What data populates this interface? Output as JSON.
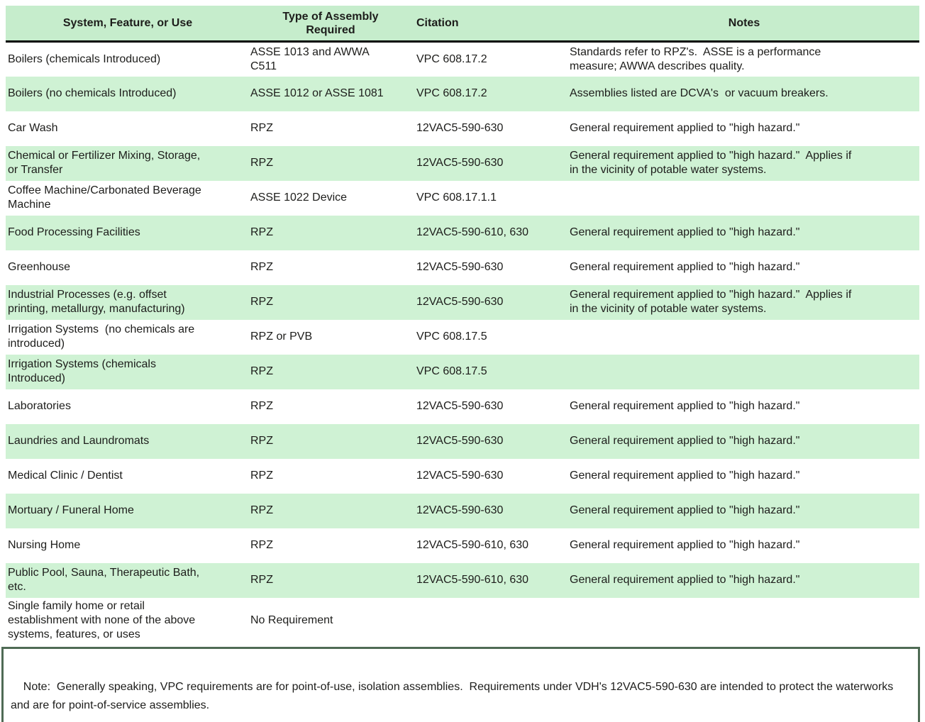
{
  "table": {
    "headers": [
      "System, Feature, or Use",
      "Type of Assembly\nRequired",
      "Citation",
      "Notes"
    ],
    "rows": [
      {
        "shaded": false,
        "system": "Boilers (chemicals Introduced)",
        "assembly": "ASSE 1013 and AWWA\nC511",
        "citation": "VPC 608.17.2",
        "notes": "Standards refer to RPZ's.  ASSE is a performance\nmeasure; AWWA describes quality."
      },
      {
        "shaded": true,
        "system": "Boilers (no chemicals Introduced)",
        "assembly": "ASSE 1012 or ASSE 1081",
        "citation": "VPC 608.17.2",
        "notes": "Assemblies listed are DCVA's  or vacuum breakers."
      },
      {
        "shaded": false,
        "system": "Car Wash",
        "assembly": "RPZ",
        "citation": "12VAC5-590-630",
        "notes": "General requirement applied to \"high hazard.\""
      },
      {
        "shaded": true,
        "system": "Chemical or Fertilizer Mixing, Storage,\nor Transfer",
        "assembly": "RPZ",
        "citation": "12VAC5-590-630",
        "notes": "General requirement applied to \"high hazard.\"  Applies if\nin the vicinity of potable water systems."
      },
      {
        "shaded": false,
        "system": "Coffee Machine/Carbonated Beverage\nMachine",
        "assembly": "ASSE 1022 Device",
        "citation": "VPC 608.17.1.1",
        "notes": ""
      },
      {
        "shaded": true,
        "system": "Food Processing Facilities",
        "assembly": "RPZ",
        "citation": "12VAC5-590-610, 630",
        "notes": "General requirement applied to \"high hazard.\""
      },
      {
        "shaded": false,
        "system": "Greenhouse",
        "assembly": "RPZ",
        "citation": "12VAC5-590-630",
        "notes": "General requirement applied to \"high hazard.\""
      },
      {
        "shaded": true,
        "system": "Industrial Processes (e.g. offset\nprinting, metallurgy, manufacturing)",
        "assembly": "RPZ",
        "citation": "12VAC5-590-630",
        "notes": "General requirement applied to \"high hazard.\"  Applies if\nin the vicinity of potable water systems."
      },
      {
        "shaded": false,
        "system": "Irrigation Systems  (no chemicals are\nintroduced)",
        "assembly": "RPZ or PVB",
        "citation": "VPC 608.17.5",
        "notes": ""
      },
      {
        "shaded": true,
        "system": "Irrigation Systems (chemicals\nIntroduced)",
        "assembly": "RPZ",
        "citation": "VPC 608.17.5",
        "notes": ""
      },
      {
        "shaded": false,
        "system": "Laboratories",
        "assembly": "RPZ",
        "citation": "12VAC5-590-630",
        "notes": "General requirement applied to \"high hazard.\""
      },
      {
        "shaded": true,
        "system": "Laundries and Laundromats",
        "assembly": "RPZ",
        "citation": "12VAC5-590-630",
        "notes": "General requirement applied to \"high hazard.\""
      },
      {
        "shaded": false,
        "system": "Medical Clinic / Dentist",
        "assembly": "RPZ",
        "citation": "12VAC5-590-630",
        "notes": "General requirement applied to \"high hazard.\""
      },
      {
        "shaded": true,
        "system": "Mortuary / Funeral Home",
        "assembly": "RPZ",
        "citation": "12VAC5-590-630",
        "notes": "General requirement applied to \"high hazard.\""
      },
      {
        "shaded": false,
        "system": "Nursing Home",
        "assembly": "RPZ",
        "citation": "12VAC5-590-610, 630",
        "notes": "General requirement applied to \"high hazard.\""
      },
      {
        "shaded": true,
        "system": "Public Pool, Sauna, Therapeutic Bath,\netc.",
        "assembly": "RPZ",
        "citation": "12VAC5-590-610, 630",
        "notes": "General requirement applied to \"high hazard.\""
      },
      {
        "shaded": false,
        "system": "Single family home or retail\nestablishment with none of the above\nsystems, features, or uses",
        "assembly": "No Requirement",
        "citation": "",
        "notes": ""
      }
    ]
  },
  "note": {
    "text": "Note:  Generally speaking, VPC requirements are for point-of-use, isolation assemblies.  Requirements under VDH's 12VAC5-590-630 are intended to protect the waterworks and are for point-of-service assemblies."
  },
  "colors": {
    "header_green": "#c6edcc",
    "row_green": "#cff2d4",
    "note_border_green": "#4f6b55",
    "header_underline": "#000000"
  }
}
